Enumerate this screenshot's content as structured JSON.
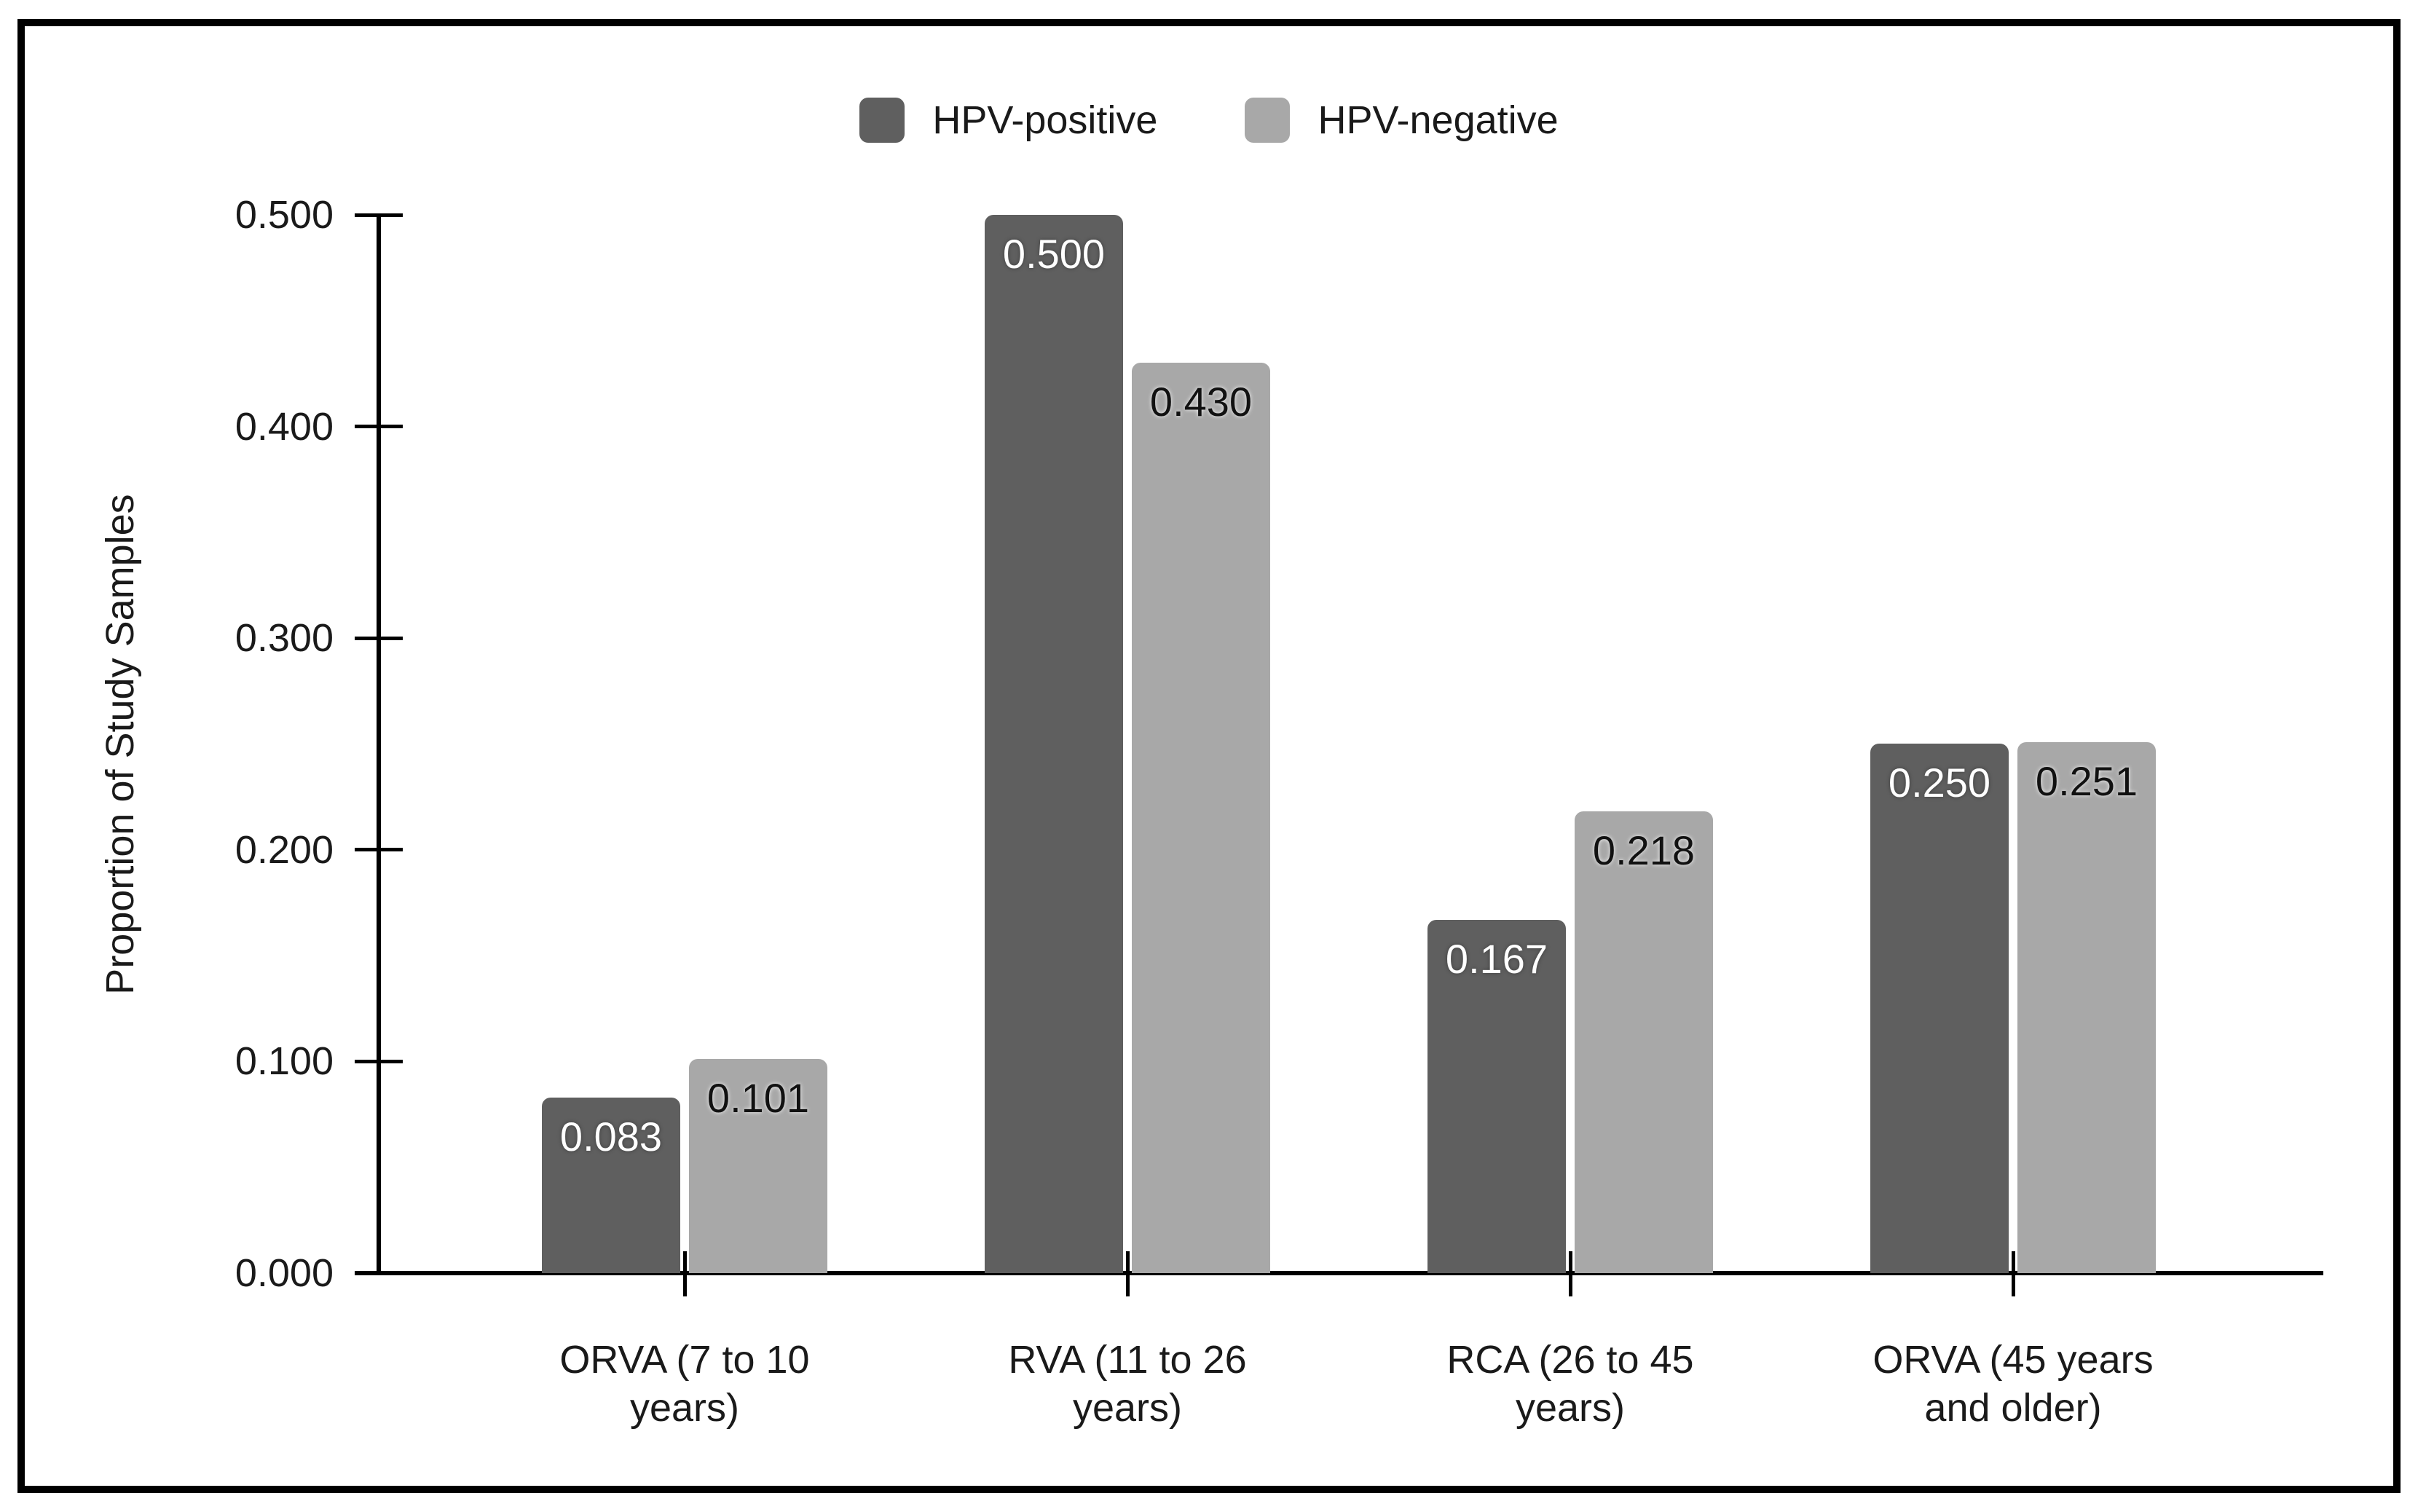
{
  "chart_data": {
    "type": "bar",
    "title": "",
    "xlabel": "",
    "ylabel": "Proportion of Study Samples",
    "categories": [
      "ORVA (7 to 10 years)",
      "RVA (11 to 26 years)",
      "RCA (26 to 45 years)",
      "ORVA (45 years and older)"
    ],
    "series": [
      {
        "name": "HPV-positive",
        "color": "#5f5f5f",
        "values": [
          0.083,
          0.5,
          0.167,
          0.25
        ],
        "value_labels": [
          "0.083",
          "0.500",
          "0.167",
          "0.250"
        ]
      },
      {
        "name": "HPV-negative",
        "color": "#a8a8a8",
        "values": [
          0.101,
          0.43,
          0.218,
          0.251
        ],
        "value_labels": [
          "0.101",
          "0.430",
          "0.218",
          "0.251"
        ]
      }
    ],
    "ylim": [
      0.0,
      0.5
    ],
    "ytick_step": 0.1,
    "ytick_labels": [
      "0.000",
      "0.100",
      "0.200",
      "0.300",
      "0.400",
      "0.500"
    ],
    "grid": false,
    "legend_position": "top",
    "value_labels_shown": true
  },
  "legend": {
    "items": [
      {
        "label": "HPV-positive",
        "color": "#5f5f5f"
      },
      {
        "label": "HPV-negative",
        "color": "#a8a8a8"
      }
    ]
  }
}
